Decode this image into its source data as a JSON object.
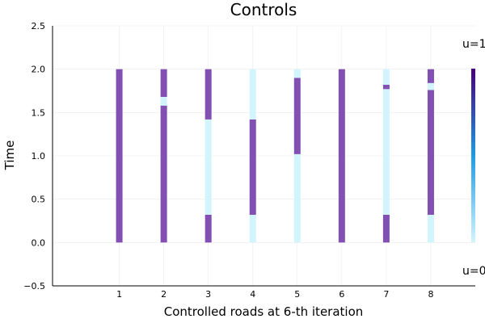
{
  "chart_data": {
    "type": "heatmap",
    "title": "Controls",
    "xlabel": "Controlled roads at 6-th iteration",
    "ylabel": "Time",
    "xlim": [
      -0.5,
      9.0
    ],
    "ylim": [
      -0.5,
      2.5
    ],
    "x_ticks": [
      "1",
      "2",
      "3",
      "4",
      "5",
      "6",
      "7",
      "8"
    ],
    "y_ticks": [
      "−0.5",
      "0.0",
      "0.5",
      "1.0",
      "1.5",
      "2.0",
      "2.5"
    ],
    "grid": true,
    "legend": "none",
    "colorbar": {
      "max_label": "u=1",
      "min_label": "u=0",
      "high_color": "#48007a",
      "mid_color": "#1e9be6",
      "low_color": "#d2f4fd"
    },
    "colors": {
      "u1": "#8250b2",
      "u0": "#d2f4fd"
    },
    "series": [
      {
        "road": 1,
        "segments": [
          {
            "t0": 0.0,
            "t1": 2.0,
            "u": 1
          }
        ]
      },
      {
        "road": 2,
        "segments": [
          {
            "t0": 0.0,
            "t1": 1.58,
            "u": 1
          },
          {
            "t0": 1.58,
            "t1": 1.68,
            "u": 0
          },
          {
            "t0": 1.68,
            "t1": 2.0,
            "u": 1
          }
        ]
      },
      {
        "road": 3,
        "segments": [
          {
            "t0": 0.0,
            "t1": 0.32,
            "u": 1
          },
          {
            "t0": 0.32,
            "t1": 1.42,
            "u": 0
          },
          {
            "t0": 1.42,
            "t1": 2.0,
            "u": 1
          }
        ]
      },
      {
        "road": 4,
        "segments": [
          {
            "t0": 0.0,
            "t1": 0.32,
            "u": 0
          },
          {
            "t0": 0.32,
            "t1": 1.42,
            "u": 1
          },
          {
            "t0": 1.42,
            "t1": 2.0,
            "u": 0
          }
        ]
      },
      {
        "road": 5,
        "segments": [
          {
            "t0": 0.0,
            "t1": 1.02,
            "u": 0
          },
          {
            "t0": 1.02,
            "t1": 1.9,
            "u": 1
          },
          {
            "t0": 1.9,
            "t1": 2.0,
            "u": 0
          }
        ]
      },
      {
        "road": 6,
        "segments": [
          {
            "t0": 0.0,
            "t1": 2.0,
            "u": 1
          }
        ]
      },
      {
        "road": 7,
        "segments": [
          {
            "t0": 0.0,
            "t1": 0.32,
            "u": 1
          },
          {
            "t0": 0.32,
            "t1": 1.77,
            "u": 0
          },
          {
            "t0": 1.77,
            "t1": 1.82,
            "u": 1
          },
          {
            "t0": 1.82,
            "t1": 2.0,
            "u": 0
          }
        ]
      },
      {
        "road": 8,
        "segments": [
          {
            "t0": 0.0,
            "t1": 0.32,
            "u": 0
          },
          {
            "t0": 0.32,
            "t1": 1.76,
            "u": 1
          },
          {
            "t0": 1.76,
            "t1": 1.84,
            "u": 0
          },
          {
            "t0": 1.84,
            "t1": 2.0,
            "u": 1
          }
        ]
      }
    ]
  }
}
